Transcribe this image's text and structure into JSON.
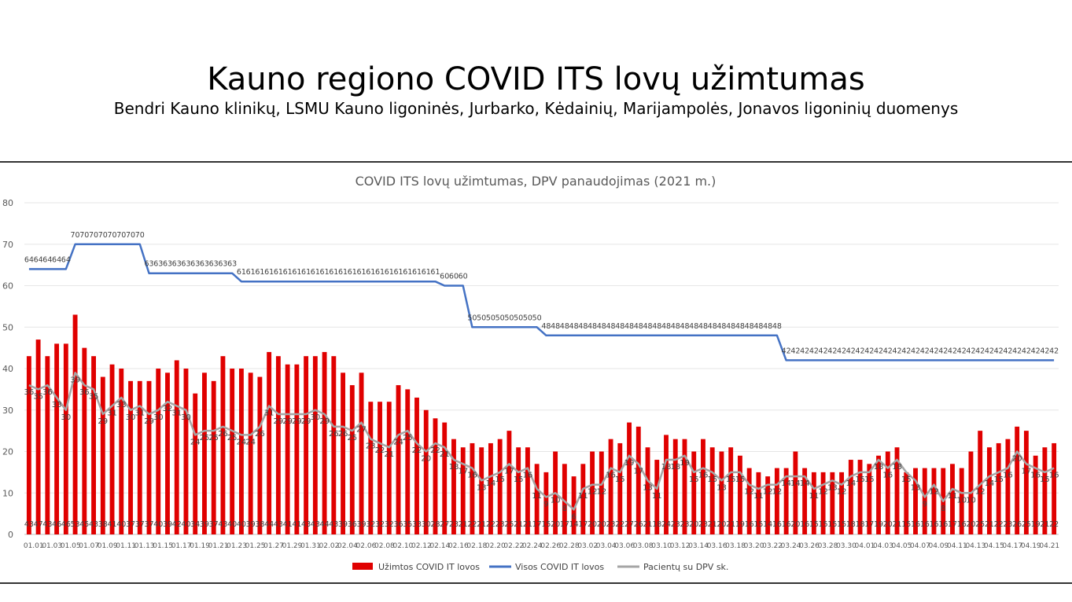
{
  "slide": {
    "title": "Kauno regiono COVID ITS lovų užimtumas",
    "subtitle": "Bendri Kauno klinikų, LSMU Kauno ligoninės, Jurbarko, Kėdainių, Marijampolės, Jonavos ligoninių duomenys"
  },
  "chart_data": {
    "type": "bar",
    "title": "COVID ITS lovų užimtumas, DPV panaudojimas (2021 m.)",
    "xlabel": "",
    "ylabel": "",
    "ylim": [
      0,
      80
    ],
    "yticks": [
      0,
      10,
      20,
      30,
      40,
      50,
      60,
      70,
      80
    ],
    "grid": true,
    "legend_position": "bottom",
    "categories": [
      "01.01",
      "01.02",
      "01.03",
      "01.04",
      "01.05",
      "01.06",
      "01.07",
      "01.08",
      "01.09",
      "01.10",
      "01.11",
      "01.12",
      "01.13",
      "01.14",
      "01.15",
      "01.16",
      "01.17",
      "01.18",
      "01.19",
      "01.20",
      "01.21",
      "01.22",
      "01.23",
      "01.24",
      "01.25",
      "01.26",
      "01.27",
      "01.28",
      "01.29",
      "01.30",
      "01.31",
      "02.01",
      "02.02",
      "02.03",
      "02.04",
      "02.05",
      "02.06",
      "02.07",
      "02.08",
      "02.09",
      "02.10",
      "02.11",
      "02.12",
      "02.13",
      "02.14",
      "02.15",
      "02.16",
      "02.17",
      "02.18",
      "02.19",
      "02.20",
      "02.21",
      "02.22",
      "02.23",
      "02.24",
      "02.25",
      "02.26",
      "02.27",
      "02.28",
      "03.01",
      "03.02",
      "03.03",
      "03.04",
      "03.05",
      "03.06",
      "03.07",
      "03.08",
      "03.09",
      "03.10",
      "03.11",
      "03.12",
      "03.13",
      "03.14",
      "03.15",
      "03.16",
      "03.17",
      "03.18",
      "03.19",
      "03.20",
      "03.21",
      "03.22",
      "03.23",
      "03.24",
      "03.25",
      "03.26",
      "03.27",
      "03.28",
      "03.29",
      "03.30",
      "03.31",
      "04.01",
      "04.02",
      "04.03",
      "04.04",
      "04.05",
      "04.06",
      "04.07",
      "04.08",
      "04.09",
      "04.10",
      "04.11",
      "04.12",
      "04.13",
      "04.14",
      "04.15",
      "04.16",
      "04.17",
      "04.18",
      "04.19",
      "04.20",
      "04.21",
      "04.22"
    ],
    "series": [
      {
        "name": "Užimtos COVID IT lovos",
        "type": "bar",
        "color": "#e00000",
        "values": [
          43,
          47,
          43,
          46,
          46,
          53,
          45,
          43,
          38,
          41,
          40,
          37,
          37,
          37,
          40,
          39,
          42,
          40,
          34,
          39,
          37,
          43,
          40,
          40,
          39,
          38,
          44,
          43,
          41,
          41,
          43,
          43,
          44,
          43,
          39,
          36,
          39,
          32,
          32,
          32,
          36,
          35,
          33,
          30,
          28,
          27,
          23,
          21,
          22,
          21,
          22,
          23,
          25,
          21,
          21,
          17,
          15,
          20,
          17,
          14,
          17,
          20,
          20,
          23,
          22,
          27,
          26,
          21,
          18,
          24,
          23,
          23,
          20,
          23,
          21,
          20,
          21,
          19,
          16,
          15,
          14,
          16,
          16,
          20,
          16,
          15,
          15,
          15,
          15,
          18,
          18,
          17,
          19,
          20,
          21,
          15,
          16,
          16,
          16,
          16,
          17,
          16,
          20,
          25,
          21,
          22,
          23,
          26,
          25,
          19,
          21,
          22
        ]
      },
      {
        "name": "Visos COVID IT lovos",
        "type": "line",
        "color": "#4472c4",
        "values": [
          64,
          64,
          64,
          64,
          64,
          70,
          70,
          70,
          70,
          70,
          70,
          70,
          70,
          63,
          63,
          63,
          63,
          63,
          63,
          63,
          63,
          63,
          63,
          61,
          61,
          61,
          61,
          61,
          61,
          61,
          61,
          61,
          61,
          61,
          61,
          61,
          61,
          61,
          61,
          61,
          61,
          61,
          61,
          61,
          61,
          60,
          60,
          60,
          50,
          50,
          50,
          50,
          50,
          50,
          50,
          50,
          48,
          48,
          48,
          48,
          48,
          48,
          48,
          48,
          48,
          48,
          48,
          48,
          48,
          48,
          48,
          48,
          48,
          48,
          48,
          48,
          48,
          48,
          48,
          48,
          48,
          48,
          42,
          42,
          42,
          42,
          42,
          42,
          42,
          42,
          42,
          42,
          42,
          42,
          42,
          42,
          42,
          42,
          42,
          42,
          42,
          42,
          42,
          42,
          42,
          42,
          42,
          42,
          42,
          42,
          42,
          42
        ]
      },
      {
        "name": "Pacientų su DPV sk.",
        "type": "line",
        "color": "#a5a5a5",
        "values": [
          36,
          35,
          36,
          33,
          30,
          39,
          36,
          35,
          29,
          31,
          33,
          30,
          31,
          29,
          30,
          32,
          31,
          30,
          24,
          25,
          25,
          26,
          25,
          24,
          24,
          26,
          31,
          29,
          29,
          29,
          29,
          30,
          29,
          26,
          26,
          25,
          27,
          23,
          22,
          21,
          24,
          25,
          22,
          20,
          22,
          21,
          18,
          17,
          16,
          13,
          14,
          15,
          17,
          15,
          16,
          11,
          9,
          10,
          8,
          6,
          11,
          12,
          12,
          16,
          15,
          19,
          17,
          13,
          11,
          18,
          18,
          19,
          15,
          16,
          15,
          13,
          15,
          15,
          12,
          11,
          12,
          12,
          14,
          14,
          14,
          11,
          12,
          13,
          12,
          14,
          15,
          15,
          18,
          16,
          18,
          15,
          13,
          9,
          12,
          8,
          11,
          10,
          10,
          12,
          14,
          15,
          16,
          20,
          17,
          16,
          15,
          16
        ]
      }
    ]
  }
}
